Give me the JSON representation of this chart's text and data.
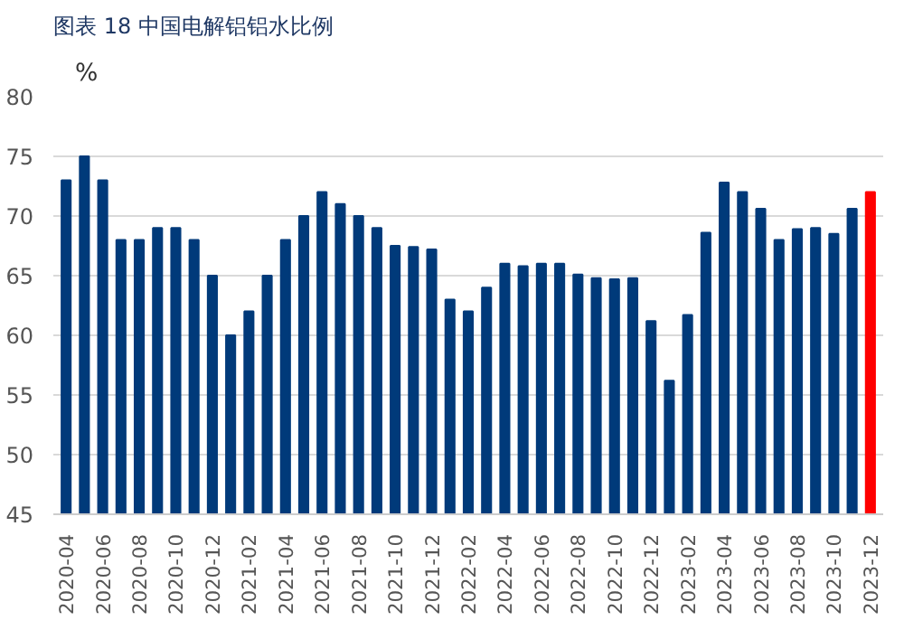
{
  "chart_data": {
    "type": "bar",
    "title": "图表 18 中国电解铝铝水比例",
    "ylabel": "%",
    "categories": [
      "2020-04",
      null,
      "2020-06",
      null,
      "2020-08",
      null,
      "2020-10",
      null,
      "2020-12",
      null,
      "2021-02",
      null,
      "2021-04",
      null,
      "2021-06",
      null,
      "2021-08",
      null,
      "2021-10",
      null,
      "2021-12",
      null,
      "2022-02",
      null,
      "2022-04",
      null,
      "2022-06",
      null,
      "2022-08",
      null,
      "2022-10",
      null,
      "2022-12",
      null,
      "2023-02",
      null,
      "2023-04",
      null,
      "2023-06",
      null,
      "2023-08",
      null,
      "2023-10",
      null,
      "2023-12"
    ],
    "values": [
      73,
      75,
      73,
      68,
      68,
      69,
      69,
      68,
      65,
      60,
      62,
      65,
      68,
      70,
      72,
      71,
      70,
      69,
      67.5,
      67.4,
      67.2,
      63,
      62,
      64,
      66,
      65.8,
      66,
      66,
      65.1,
      64.8,
      64.7,
      64.8,
      61.2,
      56.2,
      61.7,
      68.6,
      72.8,
      72,
      70.6,
      68,
      68.9,
      69,
      68.5,
      70.6,
      72
    ],
    "colors": [
      "#003a7a",
      "#003a7a",
      "#003a7a",
      "#003a7a",
      "#003a7a",
      "#003a7a",
      "#003a7a",
      "#003a7a",
      "#003a7a",
      "#003a7a",
      "#003a7a",
      "#003a7a",
      "#003a7a",
      "#003a7a",
      "#003a7a",
      "#003a7a",
      "#003a7a",
      "#003a7a",
      "#003a7a",
      "#003a7a",
      "#003a7a",
      "#003a7a",
      "#003a7a",
      "#003a7a",
      "#003a7a",
      "#003a7a",
      "#003a7a",
      "#003a7a",
      "#003a7a",
      "#003a7a",
      "#003a7a",
      "#003a7a",
      "#003a7a",
      "#003a7a",
      "#003a7a",
      "#003a7a",
      "#003a7a",
      "#003a7a",
      "#003a7a",
      "#003a7a",
      "#003a7a",
      "#003a7a",
      "#003a7a",
      "#003a7a",
      "#ff0000"
    ],
    "ylim": [
      45,
      80
    ],
    "yticks": [
      45,
      50,
      55,
      60,
      65,
      70,
      75,
      80
    ],
    "grid": "y"
  }
}
